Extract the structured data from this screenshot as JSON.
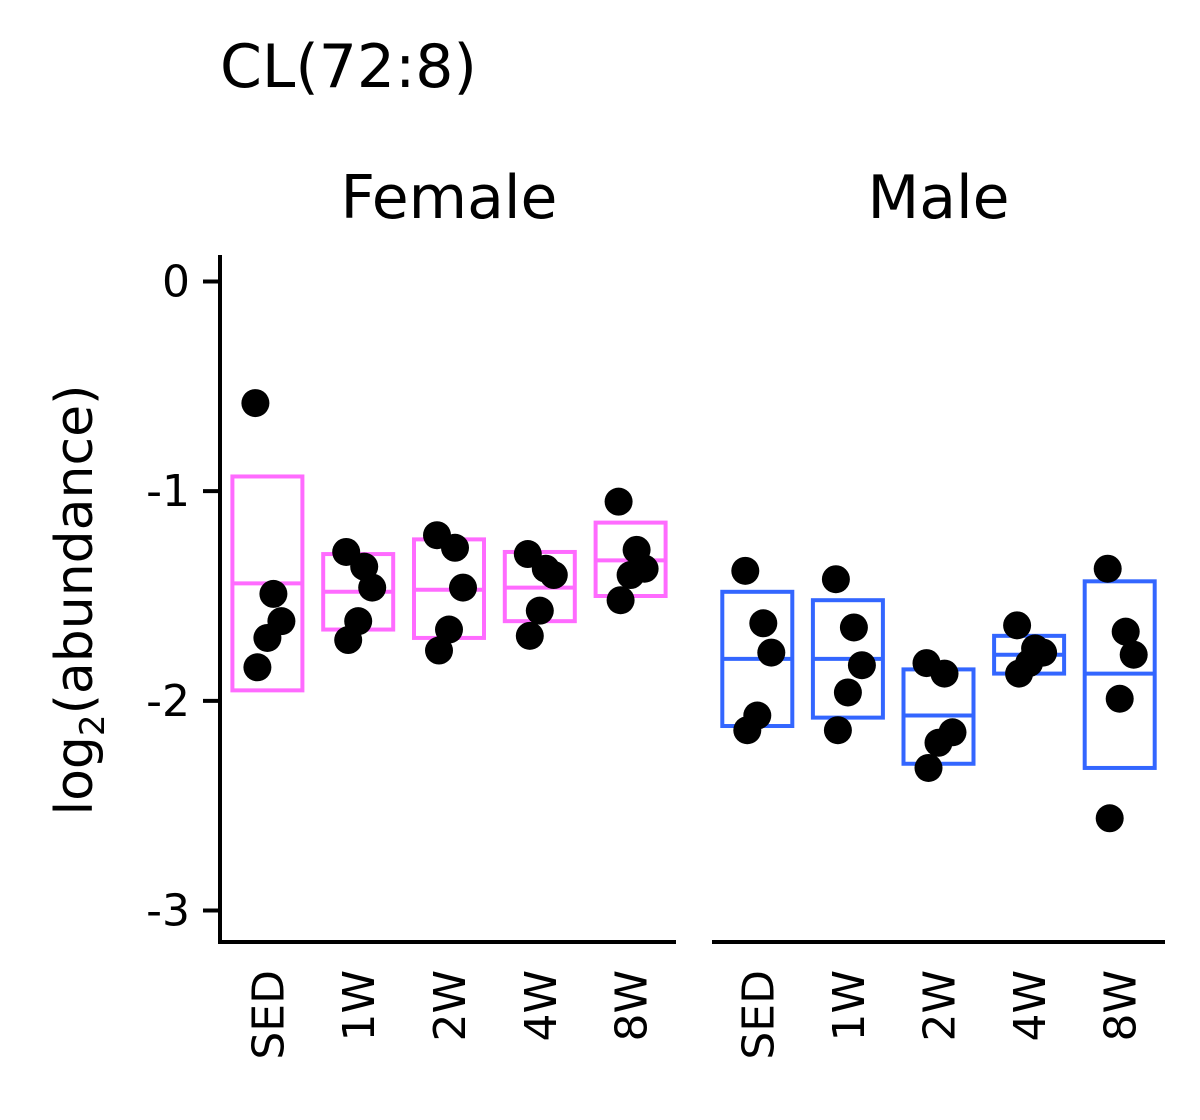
{
  "chart_data": {
    "type": "box",
    "title": "CL(72:8)",
    "ylabel_main": "log",
    "ylabel_sub": "2",
    "ylabel_rest": "(abundance)",
    "ylim": [
      -3.15,
      0.15
    ],
    "y_ticks": [
      0,
      -1,
      -2,
      -3
    ],
    "y_tick_labels": [
      "0",
      "-1",
      "-2",
      "-3"
    ],
    "categories": [
      "SED",
      "1W",
      "2W",
      "4W",
      "8W"
    ],
    "colors": {
      "Female": "#ff6bff",
      "Male": "#3366ff",
      "points": "#000000"
    },
    "panels": [
      {
        "name": "Female",
        "boxes": [
          {
            "category": "SED",
            "q1": -1.95,
            "median": -1.44,
            "q3": -0.93
          },
          {
            "category": "1W",
            "q1": -1.66,
            "median": -1.48,
            "q3": -1.3
          },
          {
            "category": "2W",
            "q1": -1.7,
            "median": -1.47,
            "q3": -1.23
          },
          {
            "category": "4W",
            "q1": -1.62,
            "median": -1.46,
            "q3": -1.29
          },
          {
            "category": "8W",
            "q1": -1.5,
            "median": -1.33,
            "q3": -1.15
          }
        ],
        "points": [
          {
            "category": "SED",
            "values": [
              -0.58,
              -1.49,
              -1.62,
              -1.7,
              -1.84
            ]
          },
          {
            "category": "1W",
            "values": [
              -1.29,
              -1.36,
              -1.46,
              -1.62,
              -1.71
            ]
          },
          {
            "category": "2W",
            "values": [
              -1.21,
              -1.27,
              -1.46,
              -1.66,
              -1.76
            ]
          },
          {
            "category": "4W",
            "values": [
              -1.3,
              -1.37,
              -1.4,
              -1.57,
              -1.69
            ]
          },
          {
            "category": "8W",
            "values": [
              -1.05,
              -1.28,
              -1.37,
              -1.4,
              -1.52
            ]
          }
        ]
      },
      {
        "name": "Male",
        "boxes": [
          {
            "category": "SED",
            "q1": -2.12,
            "median": -1.8,
            "q3": -1.48
          },
          {
            "category": "1W",
            "q1": -2.08,
            "median": -1.8,
            "q3": -1.52
          },
          {
            "category": "2W",
            "q1": -2.3,
            "median": -2.07,
            "q3": -1.85
          },
          {
            "category": "4W",
            "q1": -1.87,
            "median": -1.78,
            "q3": -1.69
          },
          {
            "category": "8W",
            "q1": -2.32,
            "median": -1.87,
            "q3": -1.43
          }
        ],
        "points": [
          {
            "category": "SED",
            "values": [
              -1.38,
              -1.63,
              -1.77,
              -2.07,
              -2.14
            ]
          },
          {
            "category": "1W",
            "values": [
              -1.42,
              -1.65,
              -1.83,
              -1.96,
              -2.14
            ]
          },
          {
            "category": "2W",
            "values": [
              -1.82,
              -1.87,
              -2.15,
              -2.2,
              -2.32
            ]
          },
          {
            "category": "4W",
            "values": [
              -1.64,
              -1.75,
              -1.77,
              -1.82,
              -1.87
            ]
          },
          {
            "category": "8W",
            "values": [
              -1.37,
              -1.67,
              -1.78,
              -1.99,
              -2.56
            ]
          }
        ]
      }
    ]
  }
}
